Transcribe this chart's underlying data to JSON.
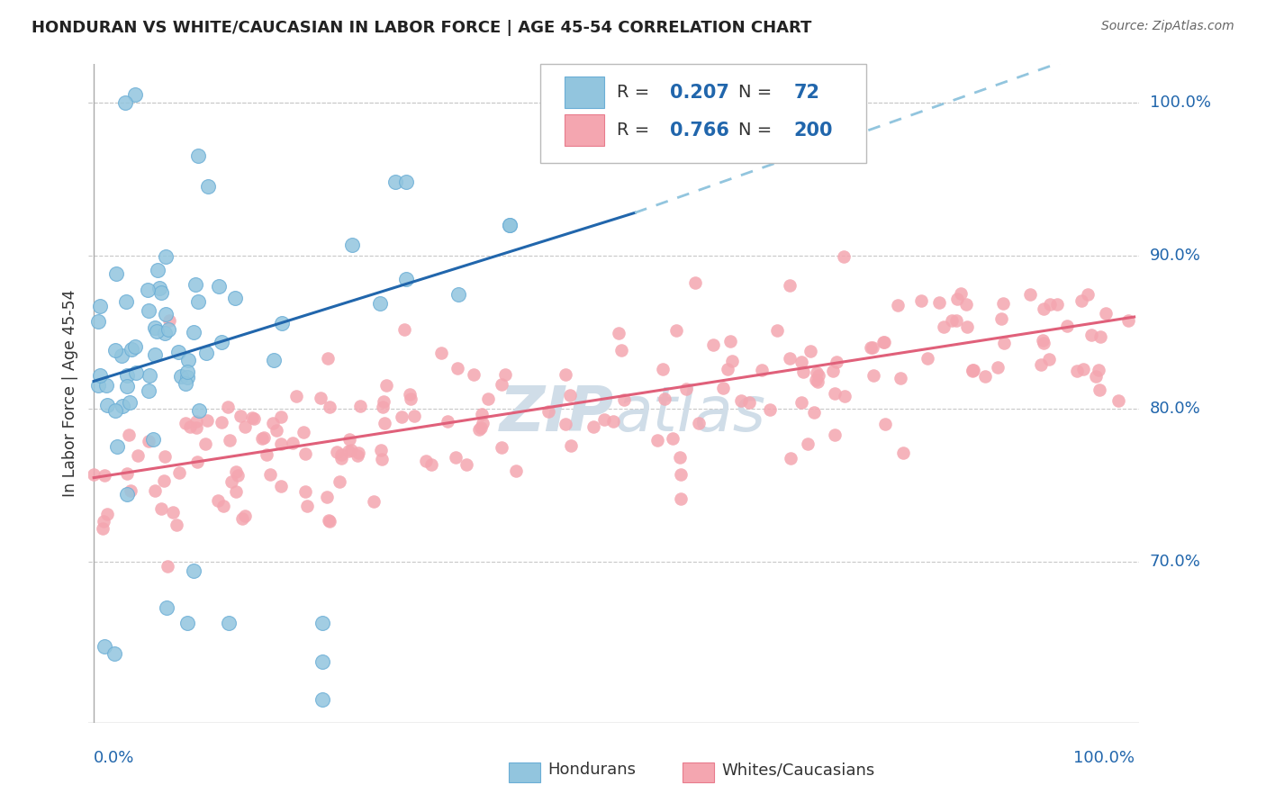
{
  "title": "HONDURAN VS WHITE/CAUCASIAN IN LABOR FORCE | AGE 45-54 CORRELATION CHART",
  "source": "Source: ZipAtlas.com",
  "ylabel": "In Labor Force | Age 45-54",
  "legend_label1": "Hondurans",
  "legend_label2": "Whites/Caucasians",
  "R1": "0.207",
  "N1": "72",
  "R2": "0.766",
  "N2": "200",
  "blue_dot_color": "#92c5de",
  "blue_dot_edge": "#6baed6",
  "pink_dot_color": "#f4a6b0",
  "pink_dot_edge": "#e87b8c",
  "blue_line_color": "#2166ac",
  "pink_line_color": "#e0607a",
  "dashed_line_color": "#92c5de",
  "legend_text_color": "#2166ac",
  "grid_color": "#c8c8c8",
  "right_axis_color": "#2166ac",
  "watermark_color": "#d0dde8"
}
